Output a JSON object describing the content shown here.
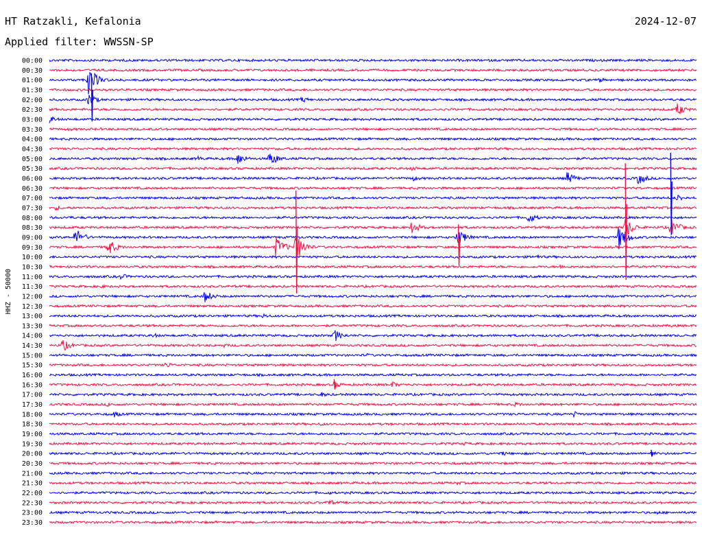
{
  "chart_data": {
    "type": "line",
    "station": "HT Ratzakli, Kefalonia",
    "date": "2024-12-07",
    "filter_label": "Applied filter: WWSSN-SP",
    "ylabel": "HHZ - 50000",
    "colors": {
      "even_rows": "#0000ee",
      "odd_rows": "#ee1144",
      "background": "#ffffff",
      "text": "#000000"
    },
    "rows": [
      {
        "time": "00:00",
        "events": [
          {
            "x": 0.48,
            "amp": 2
          }
        ]
      },
      {
        "time": "00:30",
        "events": [
          {
            "x": 0.68,
            "amp": 2
          }
        ]
      },
      {
        "time": "01:00",
        "events": [
          {
            "x": 0.06,
            "amp": 22
          },
          {
            "x": 0.85,
            "amp": 4
          }
        ]
      },
      {
        "time": "01:30",
        "events": []
      },
      {
        "time": "02:00",
        "events": [
          {
            "x": 0.39,
            "amp": 5
          },
          {
            "x": 0.06,
            "amp": 10
          }
        ]
      },
      {
        "time": "02:30",
        "events": [
          {
            "x": 0.97,
            "amp": 10
          }
        ]
      },
      {
        "time": "03:00",
        "events": [
          {
            "x": 0.0,
            "amp": 6
          }
        ]
      },
      {
        "time": "03:30",
        "events": [
          {
            "x": 0.03,
            "amp": 3
          }
        ]
      },
      {
        "time": "04:00",
        "events": []
      },
      {
        "time": "04:30",
        "events": []
      },
      {
        "time": "05:00",
        "events": [
          {
            "x": 0.29,
            "amp": 10
          },
          {
            "x": 0.23,
            "amp": 4
          },
          {
            "x": 0.34,
            "amp": 12
          }
        ]
      },
      {
        "time": "05:30",
        "events": [
          {
            "x": 0.56,
            "amp": 4
          }
        ]
      },
      {
        "time": "06:00",
        "events": [
          {
            "x": 0.8,
            "amp": 10
          },
          {
            "x": 0.91,
            "amp": 10
          },
          {
            "x": 0.56,
            "amp": 5
          }
        ]
      },
      {
        "time": "06:30",
        "events": [
          {
            "x": 0.46,
            "amp": 3
          }
        ]
      },
      {
        "time": "07:00",
        "events": [
          {
            "x": 0.97,
            "amp": 6
          }
        ]
      },
      {
        "time": "07:30",
        "events": [
          {
            "x": 0.01,
            "amp": 4
          }
        ]
      },
      {
        "time": "08:00",
        "events": [
          {
            "x": 0.74,
            "amp": 9
          },
          {
            "x": 0.03,
            "amp": 3
          }
        ]
      },
      {
        "time": "08:30",
        "events": [
          {
            "x": 0.56,
            "amp": 10
          },
          {
            "x": 0.89,
            "amp": 16
          },
          {
            "x": 0.96,
            "amp": 14
          }
        ]
      },
      {
        "time": "09:00",
        "events": [
          {
            "x": 0.04,
            "amp": 14
          },
          {
            "x": 0.63,
            "amp": 14
          },
          {
            "x": 0.88,
            "amp": 20
          }
        ]
      },
      {
        "time": "09:30",
        "events": [
          {
            "x": 0.09,
            "amp": 14
          },
          {
            "x": 0.35,
            "amp": 16
          },
          {
            "x": 0.38,
            "amp": 22
          }
        ]
      },
      {
        "time": "10:00",
        "events": [
          {
            "x": 0.75,
            "amp": 5
          }
        ]
      },
      {
        "time": "10:30",
        "events": [
          {
            "x": 0.79,
            "amp": 4
          }
        ]
      },
      {
        "time": "11:00",
        "events": [
          {
            "x": 0.11,
            "amp": 5
          }
        ]
      },
      {
        "time": "11:30",
        "events": [
          {
            "x": 0.08,
            "amp": 3
          }
        ]
      },
      {
        "time": "12:00",
        "events": [
          {
            "x": 0.24,
            "amp": 10
          }
        ]
      },
      {
        "time": "12:30",
        "events": []
      },
      {
        "time": "13:00",
        "events": [
          {
            "x": 0.33,
            "amp": 4
          }
        ]
      },
      {
        "time": "13:30",
        "events": [
          {
            "x": 0.96,
            "amp": 3
          }
        ]
      },
      {
        "time": "14:00",
        "events": [
          {
            "x": 0.44,
            "amp": 10
          },
          {
            "x": 0.16,
            "amp": 4
          }
        ]
      },
      {
        "time": "14:30",
        "events": [
          {
            "x": 0.02,
            "amp": 10
          },
          {
            "x": 0.27,
            "amp": 3
          }
        ]
      },
      {
        "time": "15:00",
        "events": [
          {
            "x": 0.49,
            "amp": 3
          }
        ]
      },
      {
        "time": "15:30",
        "events": [
          {
            "x": 0.18,
            "amp": 5
          }
        ]
      },
      {
        "time": "16:00",
        "events": [
          {
            "x": 0.71,
            "amp": 3
          }
        ]
      },
      {
        "time": "16:30",
        "events": [
          {
            "x": 0.44,
            "amp": 6
          },
          {
            "x": 0.53,
            "amp": 5
          }
        ]
      },
      {
        "time": "17:00",
        "events": [
          {
            "x": 0.42,
            "amp": 4
          }
        ]
      },
      {
        "time": "17:30",
        "events": [
          {
            "x": 0.09,
            "amp": 4
          },
          {
            "x": 0.72,
            "amp": 4
          }
        ]
      },
      {
        "time": "18:00",
        "events": [
          {
            "x": 0.1,
            "amp": 5
          },
          {
            "x": 0.81,
            "amp": 5
          }
        ]
      },
      {
        "time": "18:30",
        "events": [
          {
            "x": 0.42,
            "amp": 3
          }
        ]
      },
      {
        "time": "19:00",
        "events": []
      },
      {
        "time": "19:30",
        "events": [
          {
            "x": 0.64,
            "amp": 3
          }
        ]
      },
      {
        "time": "20:00",
        "events": [
          {
            "x": 0.19,
            "amp": 3
          },
          {
            "x": 0.7,
            "amp": 4
          },
          {
            "x": 0.93,
            "amp": 4
          }
        ]
      },
      {
        "time": "20:30",
        "events": []
      },
      {
        "time": "21:00",
        "events": []
      },
      {
        "time": "21:30",
        "events": [
          {
            "x": 0.63,
            "amp": 3
          }
        ]
      },
      {
        "time": "22:00",
        "events": [
          {
            "x": 0.43,
            "amp": 3
          }
        ]
      },
      {
        "time": "22:30",
        "events": [
          {
            "x": 0.43,
            "amp": 6
          }
        ]
      },
      {
        "time": "23:00",
        "events": [
          {
            "x": 0.94,
            "amp": 3
          }
        ]
      },
      {
        "time": "23:30",
        "events": []
      }
    ],
    "spikes": [
      {
        "time": "02:00",
        "x": 0.065,
        "amp": 70
      },
      {
        "time": "09:30",
        "x": 0.381,
        "amp": 150
      },
      {
        "time": "08:30",
        "x": 0.89,
        "amp": 170
      },
      {
        "time": "07:00",
        "x": 0.96,
        "amp": 120
      },
      {
        "time": "09:30",
        "x": 0.632,
        "amp": 60
      },
      {
        "time": "16:30",
        "x": 0.44,
        "amp": 15
      },
      {
        "time": "20:00",
        "x": 0.93,
        "amp": 10
      }
    ],
    "grid": false
  }
}
